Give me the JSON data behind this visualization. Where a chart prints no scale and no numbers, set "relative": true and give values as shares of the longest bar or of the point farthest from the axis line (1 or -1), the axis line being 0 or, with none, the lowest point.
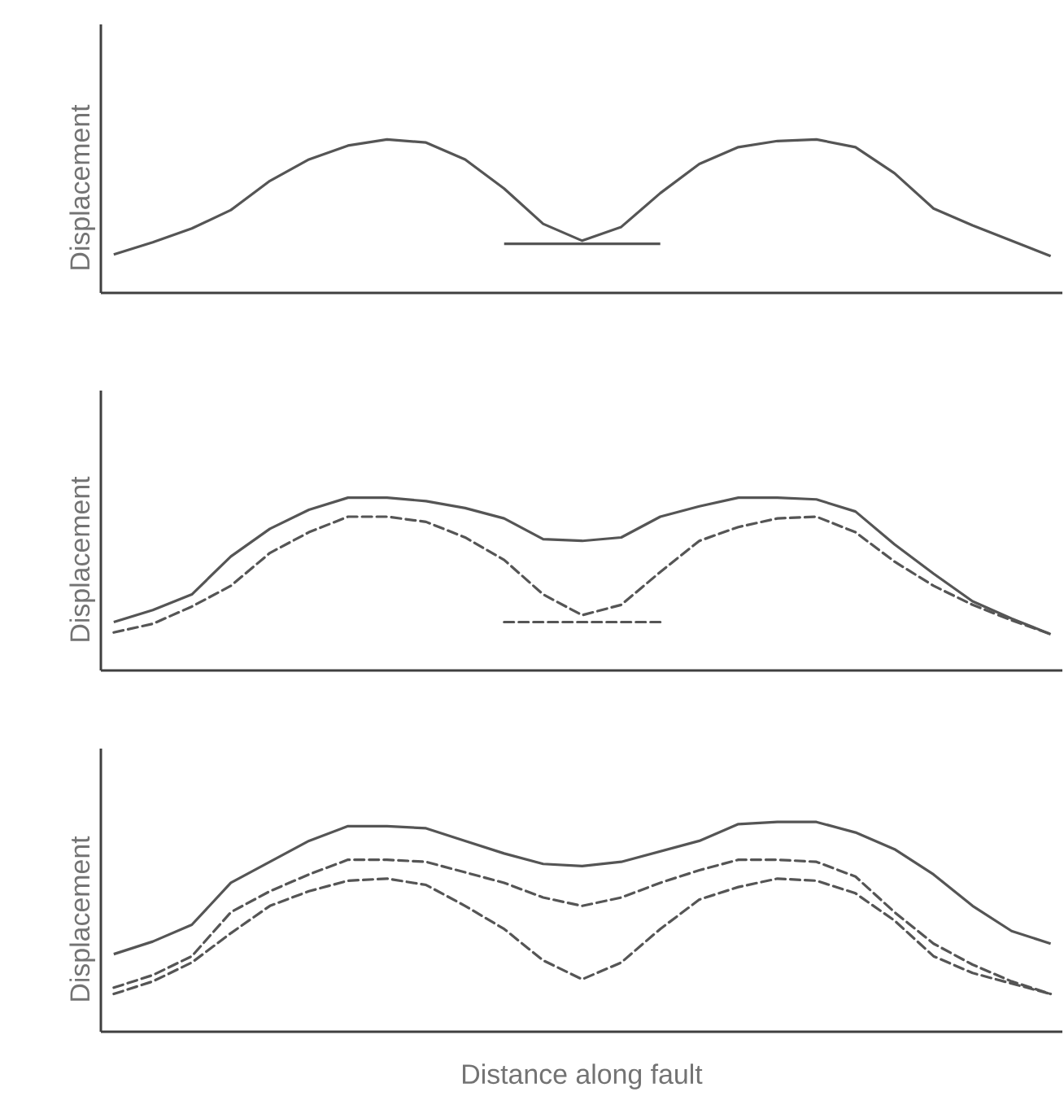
{
  "chart_data": [
    {
      "type": "line",
      "relative": true,
      "ylabel": "Displacement",
      "tick_labels": false,
      "categories": [
        null,
        null,
        null,
        null,
        null,
        null,
        null,
        null,
        null,
        null,
        null,
        null,
        null,
        null,
        null,
        null,
        null,
        null,
        null,
        null,
        null,
        null,
        null,
        null,
        null
      ],
      "series": [
        {
          "color": "#555555",
          "line_style": "solid",
          "values": [
            0.25,
            0.33,
            0.42,
            0.54,
            0.73,
            0.87,
            0.96,
            1.0,
            0.98,
            0.87,
            0.68,
            0.45,
            0.34,
            0.43,
            0.65,
            0.84,
            0.95,
            0.99,
            1.0,
            0.95,
            0.78,
            0.55,
            0.44,
            0.34,
            0.24
          ]
        },
        {
          "color": "#555555",
          "line_style": "solid",
          "values": [
            null,
            null,
            null,
            null,
            null,
            null,
            null,
            null,
            null,
            null,
            0.32,
            0.32,
            0.32,
            0.32,
            0.32,
            null,
            null,
            null,
            null,
            null,
            null,
            null,
            null,
            null,
            null
          ]
        }
      ]
    },
    {
      "type": "line",
      "relative": true,
      "ylabel": "Displacement",
      "tick_labels": false,
      "categories": [
        null,
        null,
        null,
        null,
        null,
        null,
        null,
        null,
        null,
        null,
        null,
        null,
        null,
        null,
        null,
        null,
        null,
        null,
        null,
        null,
        null,
        null,
        null,
        null,
        null
      ],
      "series": [
        {
          "color": "#555555",
          "line_style": "solid",
          "values": [
            0.28,
            0.35,
            0.44,
            0.66,
            0.82,
            0.93,
            1.0,
            1.0,
            0.98,
            0.94,
            0.88,
            0.76,
            0.75,
            0.77,
            0.89,
            0.95,
            1.0,
            1.0,
            0.99,
            0.92,
            0.73,
            0.56,
            0.4,
            0.3,
            0.21
          ]
        },
        {
          "color": "#555555",
          "line_style": "dashed",
          "values": [
            0.22,
            0.27,
            0.37,
            0.49,
            0.68,
            0.8,
            0.89,
            0.89,
            0.86,
            0.77,
            0.64,
            0.44,
            0.32,
            0.38,
            0.57,
            0.75,
            0.83,
            0.88,
            0.89,
            0.8,
            0.63,
            0.49,
            0.38,
            0.29,
            0.21
          ]
        },
        {
          "color": "#555555",
          "line_style": "dashed",
          "values": [
            null,
            null,
            null,
            null,
            null,
            null,
            null,
            null,
            null,
            null,
            0.28,
            0.28,
            0.28,
            0.28,
            0.28,
            null,
            null,
            null,
            null,
            null,
            null,
            null,
            null,
            null,
            null
          ]
        }
      ]
    },
    {
      "type": "line",
      "relative": true,
      "ylabel": "Displacement",
      "xlabel": "Distance along fault",
      "tick_labels": false,
      "categories": [
        null,
        null,
        null,
        null,
        null,
        null,
        null,
        null,
        null,
        null,
        null,
        null,
        null,
        null,
        null,
        null,
        null,
        null,
        null,
        null,
        null,
        null,
        null,
        null,
        null
      ],
      "series": [
        {
          "color": "#555555",
          "line_style": "solid",
          "values": [
            0.37,
            0.43,
            0.51,
            0.71,
            0.81,
            0.91,
            0.98,
            0.98,
            0.97,
            0.91,
            0.85,
            0.8,
            0.79,
            0.81,
            0.86,
            0.91,
            0.99,
            1.0,
            1.0,
            0.95,
            0.87,
            0.75,
            0.6,
            0.48,
            0.42
          ]
        },
        {
          "color": "#555555",
          "line_style": "dashed",
          "values": [
            0.21,
            0.27,
            0.36,
            0.57,
            0.67,
            0.75,
            0.82,
            0.82,
            0.81,
            0.76,
            0.71,
            0.64,
            0.6,
            0.64,
            0.71,
            0.77,
            0.82,
            0.82,
            0.81,
            0.74,
            0.57,
            0.42,
            0.32,
            0.24,
            0.18
          ]
        },
        {
          "color": "#555555",
          "line_style": "dashed",
          "values": [
            0.18,
            0.24,
            0.33,
            0.47,
            0.6,
            0.67,
            0.72,
            0.73,
            0.7,
            0.6,
            0.49,
            0.34,
            0.25,
            0.33,
            0.49,
            0.63,
            0.69,
            0.73,
            0.72,
            0.66,
            0.53,
            0.36,
            0.28,
            0.23,
            0.18
          ]
        }
      ]
    }
  ]
}
